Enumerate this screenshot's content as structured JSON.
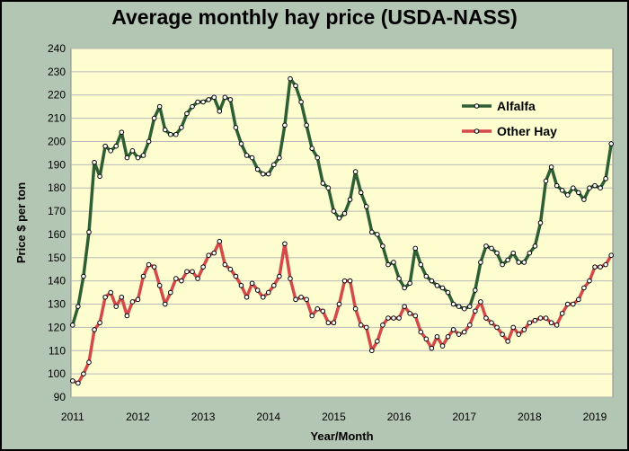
{
  "chart_data": {
    "type": "line",
    "title": "Average monthly hay price (USDA-NASS)",
    "xlabel": "Year/Month",
    "ylabel": "Price $ per ton",
    "ylim": [
      90,
      240
    ],
    "yticks": [
      90,
      100,
      110,
      120,
      130,
      140,
      150,
      160,
      170,
      180,
      190,
      200,
      210,
      220,
      230,
      240
    ],
    "xlim": [
      "2011-01",
      "2019-04"
    ],
    "xticks": [
      "2011",
      "2012",
      "2013",
      "2014",
      "2015",
      "2016",
      "2017",
      "2018",
      "2019"
    ],
    "grid": "horizontal",
    "legend_placement": "right",
    "background": "#fdfdd0",
    "series": [
      {
        "name": "Alfalfa",
        "color": "#2e5e34",
        "values": [
          {
            "x": "2011-01",
            "y": 121
          },
          {
            "x": "2011-02",
            "y": 129
          },
          {
            "x": "2011-03",
            "y": 142
          },
          {
            "x": "2011-04",
            "y": 161
          },
          {
            "x": "2011-05",
            "y": 191
          },
          {
            "x": "2011-06",
            "y": 185
          },
          {
            "x": "2011-07",
            "y": 198
          },
          {
            "x": "2011-08",
            "y": 196
          },
          {
            "x": "2011-09",
            "y": 198
          },
          {
            "x": "2011-10",
            "y": 204
          },
          {
            "x": "2011-11",
            "y": 193
          },
          {
            "x": "2011-12",
            "y": 196
          },
          {
            "x": "2012-01",
            "y": 193
          },
          {
            "x": "2012-02",
            "y": 194
          },
          {
            "x": "2012-03",
            "y": 200
          },
          {
            "x": "2012-04",
            "y": 210
          },
          {
            "x": "2012-05",
            "y": 215
          },
          {
            "x": "2012-06",
            "y": 205
          },
          {
            "x": "2012-07",
            "y": 203
          },
          {
            "x": "2012-08",
            "y": 203
          },
          {
            "x": "2012-09",
            "y": 206
          },
          {
            "x": "2012-10",
            "y": 212
          },
          {
            "x": "2012-11",
            "y": 215
          },
          {
            "x": "2012-12",
            "y": 217
          },
          {
            "x": "2013-01",
            "y": 217
          },
          {
            "x": "2013-02",
            "y": 218
          },
          {
            "x": "2013-03",
            "y": 219
          },
          {
            "x": "2013-04",
            "y": 213
          },
          {
            "x": "2013-05",
            "y": 219
          },
          {
            "x": "2013-06",
            "y": 218
          },
          {
            "x": "2013-07",
            "y": 206
          },
          {
            "x": "2013-08",
            "y": 199
          },
          {
            "x": "2013-09",
            "y": 194
          },
          {
            "x": "2013-10",
            "y": 193
          },
          {
            "x": "2013-11",
            "y": 188
          },
          {
            "x": "2013-12",
            "y": 186
          },
          {
            "x": "2014-01",
            "y": 186
          },
          {
            "x": "2014-02",
            "y": 190
          },
          {
            "x": "2014-03",
            "y": 193
          },
          {
            "x": "2014-04",
            "y": 207
          },
          {
            "x": "2014-05",
            "y": 227
          },
          {
            "x": "2014-06",
            "y": 224
          },
          {
            "x": "2014-07",
            "y": 217
          },
          {
            "x": "2014-08",
            "y": 207
          },
          {
            "x": "2014-09",
            "y": 197
          },
          {
            "x": "2014-10",
            "y": 193
          },
          {
            "x": "2014-11",
            "y": 182
          },
          {
            "x": "2014-12",
            "y": 180
          },
          {
            "x": "2015-01",
            "y": 170
          },
          {
            "x": "2015-02",
            "y": 167
          },
          {
            "x": "2015-03",
            "y": 169
          },
          {
            "x": "2015-04",
            "y": 175
          },
          {
            "x": "2015-05",
            "y": 187
          },
          {
            "x": "2015-06",
            "y": 178
          },
          {
            "x": "2015-07",
            "y": 172
          },
          {
            "x": "2015-08",
            "y": 161
          },
          {
            "x": "2015-09",
            "y": 160
          },
          {
            "x": "2015-10",
            "y": 155
          },
          {
            "x": "2015-11",
            "y": 147
          },
          {
            "x": "2015-12",
            "y": 148
          },
          {
            "x": "2016-01",
            "y": 141
          },
          {
            "x": "2016-02",
            "y": 137
          },
          {
            "x": "2016-03",
            "y": 139
          },
          {
            "x": "2016-04",
            "y": 154
          },
          {
            "x": "2016-05",
            "y": 147
          },
          {
            "x": "2016-06",
            "y": 142
          },
          {
            "x": "2016-07",
            "y": 140
          },
          {
            "x": "2016-08",
            "y": 138
          },
          {
            "x": "2016-09",
            "y": 137
          },
          {
            "x": "2016-10",
            "y": 135
          },
          {
            "x": "2016-11",
            "y": 130
          },
          {
            "x": "2016-12",
            "y": 129
          },
          {
            "x": "2017-01",
            "y": 128
          },
          {
            "x": "2017-02",
            "y": 129
          },
          {
            "x": "2017-03",
            "y": 136
          },
          {
            "x": "2017-04",
            "y": 148
          },
          {
            "x": "2017-05",
            "y": 155
          },
          {
            "x": "2017-06",
            "y": 154
          },
          {
            "x": "2017-07",
            "y": 152
          },
          {
            "x": "2017-08",
            "y": 147
          },
          {
            "x": "2017-09",
            "y": 149
          },
          {
            "x": "2017-10",
            "y": 152
          },
          {
            "x": "2017-11",
            "y": 148
          },
          {
            "x": "2017-12",
            "y": 148
          },
          {
            "x": "2018-01",
            "y": 152
          },
          {
            "x": "2018-02",
            "y": 155
          },
          {
            "x": "2018-03",
            "y": 165
          },
          {
            "x": "2018-04",
            "y": 183
          },
          {
            "x": "2018-05",
            "y": 189
          },
          {
            "x": "2018-06",
            "y": 181
          },
          {
            "x": "2018-07",
            "y": 179
          },
          {
            "x": "2018-08",
            "y": 177
          },
          {
            "x": "2018-09",
            "y": 180
          },
          {
            "x": "2018-10",
            "y": 178
          },
          {
            "x": "2018-11",
            "y": 175
          },
          {
            "x": "2018-12",
            "y": 180
          },
          {
            "x": "2019-01",
            "y": 181
          },
          {
            "x": "2019-02",
            "y": 180
          },
          {
            "x": "2019-03",
            "y": 184
          },
          {
            "x": "2019-04",
            "y": 199
          }
        ]
      },
      {
        "name": "Other Hay",
        "color": "#d44a4a",
        "values": [
          {
            "x": "2011-01",
            "y": 97
          },
          {
            "x": "2011-02",
            "y": 96
          },
          {
            "x": "2011-03",
            "y": 100
          },
          {
            "x": "2011-04",
            "y": 105
          },
          {
            "x": "2011-05",
            "y": 119
          },
          {
            "x": "2011-06",
            "y": 122
          },
          {
            "x": "2011-07",
            "y": 133
          },
          {
            "x": "2011-08",
            "y": 135
          },
          {
            "x": "2011-09",
            "y": 129
          },
          {
            "x": "2011-10",
            "y": 133
          },
          {
            "x": "2011-11",
            "y": 125
          },
          {
            "x": "2011-12",
            "y": 131
          },
          {
            "x": "2012-01",
            "y": 132
          },
          {
            "x": "2012-02",
            "y": 142
          },
          {
            "x": "2012-03",
            "y": 147
          },
          {
            "x": "2012-04",
            "y": 146
          },
          {
            "x": "2012-05",
            "y": 138
          },
          {
            "x": "2012-06",
            "y": 130
          },
          {
            "x": "2012-07",
            "y": 135
          },
          {
            "x": "2012-08",
            "y": 141
          },
          {
            "x": "2012-09",
            "y": 140
          },
          {
            "x": "2012-10",
            "y": 144
          },
          {
            "x": "2012-11",
            "y": 144
          },
          {
            "x": "2012-12",
            "y": 141
          },
          {
            "x": "2013-01",
            "y": 146
          },
          {
            "x": "2013-02",
            "y": 151
          },
          {
            "x": "2013-03",
            "y": 152
          },
          {
            "x": "2013-04",
            "y": 157
          },
          {
            "x": "2013-05",
            "y": 147
          },
          {
            "x": "2013-06",
            "y": 145
          },
          {
            "x": "2013-07",
            "y": 142
          },
          {
            "x": "2013-08",
            "y": 138
          },
          {
            "x": "2013-09",
            "y": 133
          },
          {
            "x": "2013-10",
            "y": 139
          },
          {
            "x": "2013-11",
            "y": 136
          },
          {
            "x": "2013-12",
            "y": 133
          },
          {
            "x": "2014-01",
            "y": 135
          },
          {
            "x": "2014-02",
            "y": 138
          },
          {
            "x": "2014-03",
            "y": 142
          },
          {
            "x": "2014-04",
            "y": 156
          },
          {
            "x": "2014-05",
            "y": 141
          },
          {
            "x": "2014-06",
            "y": 132
          },
          {
            "x": "2014-07",
            "y": 133
          },
          {
            "x": "2014-08",
            "y": 132
          },
          {
            "x": "2014-09",
            "y": 125
          },
          {
            "x": "2014-10",
            "y": 128
          },
          {
            "x": "2014-11",
            "y": 127
          },
          {
            "x": "2014-12",
            "y": 122
          },
          {
            "x": "2015-01",
            "y": 122
          },
          {
            "x": "2015-02",
            "y": 130
          },
          {
            "x": "2015-03",
            "y": 140
          },
          {
            "x": "2015-04",
            "y": 140
          },
          {
            "x": "2015-05",
            "y": 128
          },
          {
            "x": "2015-06",
            "y": 121
          },
          {
            "x": "2015-07",
            "y": 120
          },
          {
            "x": "2015-08",
            "y": 110
          },
          {
            "x": "2015-09",
            "y": 114
          },
          {
            "x": "2015-10",
            "y": 121
          },
          {
            "x": "2015-11",
            "y": 124
          },
          {
            "x": "2015-12",
            "y": 124
          },
          {
            "x": "2016-01",
            "y": 124
          },
          {
            "x": "2016-02",
            "y": 129
          },
          {
            "x": "2016-03",
            "y": 126
          },
          {
            "x": "2016-04",
            "y": 125
          },
          {
            "x": "2016-05",
            "y": 118
          },
          {
            "x": "2016-06",
            "y": 115
          },
          {
            "x": "2016-07",
            "y": 111
          },
          {
            "x": "2016-08",
            "y": 116
          },
          {
            "x": "2016-09",
            "y": 112
          },
          {
            "x": "2016-10",
            "y": 116
          },
          {
            "x": "2016-11",
            "y": 119
          },
          {
            "x": "2016-12",
            "y": 117
          },
          {
            "x": "2017-01",
            "y": 118
          },
          {
            "x": "2017-02",
            "y": 121
          },
          {
            "x": "2017-03",
            "y": 127
          },
          {
            "x": "2017-04",
            "y": 131
          },
          {
            "x": "2017-05",
            "y": 124
          },
          {
            "x": "2017-06",
            "y": 122
          },
          {
            "x": "2017-07",
            "y": 120
          },
          {
            "x": "2017-08",
            "y": 117
          },
          {
            "x": "2017-09",
            "y": 114
          },
          {
            "x": "2017-10",
            "y": 120
          },
          {
            "x": "2017-11",
            "y": 117
          },
          {
            "x": "2017-12",
            "y": 119
          },
          {
            "x": "2018-01",
            "y": 122
          },
          {
            "x": "2018-02",
            "y": 123
          },
          {
            "x": "2018-03",
            "y": 124
          },
          {
            "x": "2018-04",
            "y": 124
          },
          {
            "x": "2018-05",
            "y": 122
          },
          {
            "x": "2018-06",
            "y": 121
          },
          {
            "x": "2018-07",
            "y": 126
          },
          {
            "x": "2018-08",
            "y": 130
          },
          {
            "x": "2018-09",
            "y": 130
          },
          {
            "x": "2018-10",
            "y": 132
          },
          {
            "x": "2018-11",
            "y": 137
          },
          {
            "x": "2018-12",
            "y": 140
          },
          {
            "x": "2019-01",
            "y": 146
          },
          {
            "x": "2019-02",
            "y": 146
          },
          {
            "x": "2019-03",
            "y": 147
          },
          {
            "x": "2019-04",
            "y": 151
          }
        ]
      }
    ]
  }
}
